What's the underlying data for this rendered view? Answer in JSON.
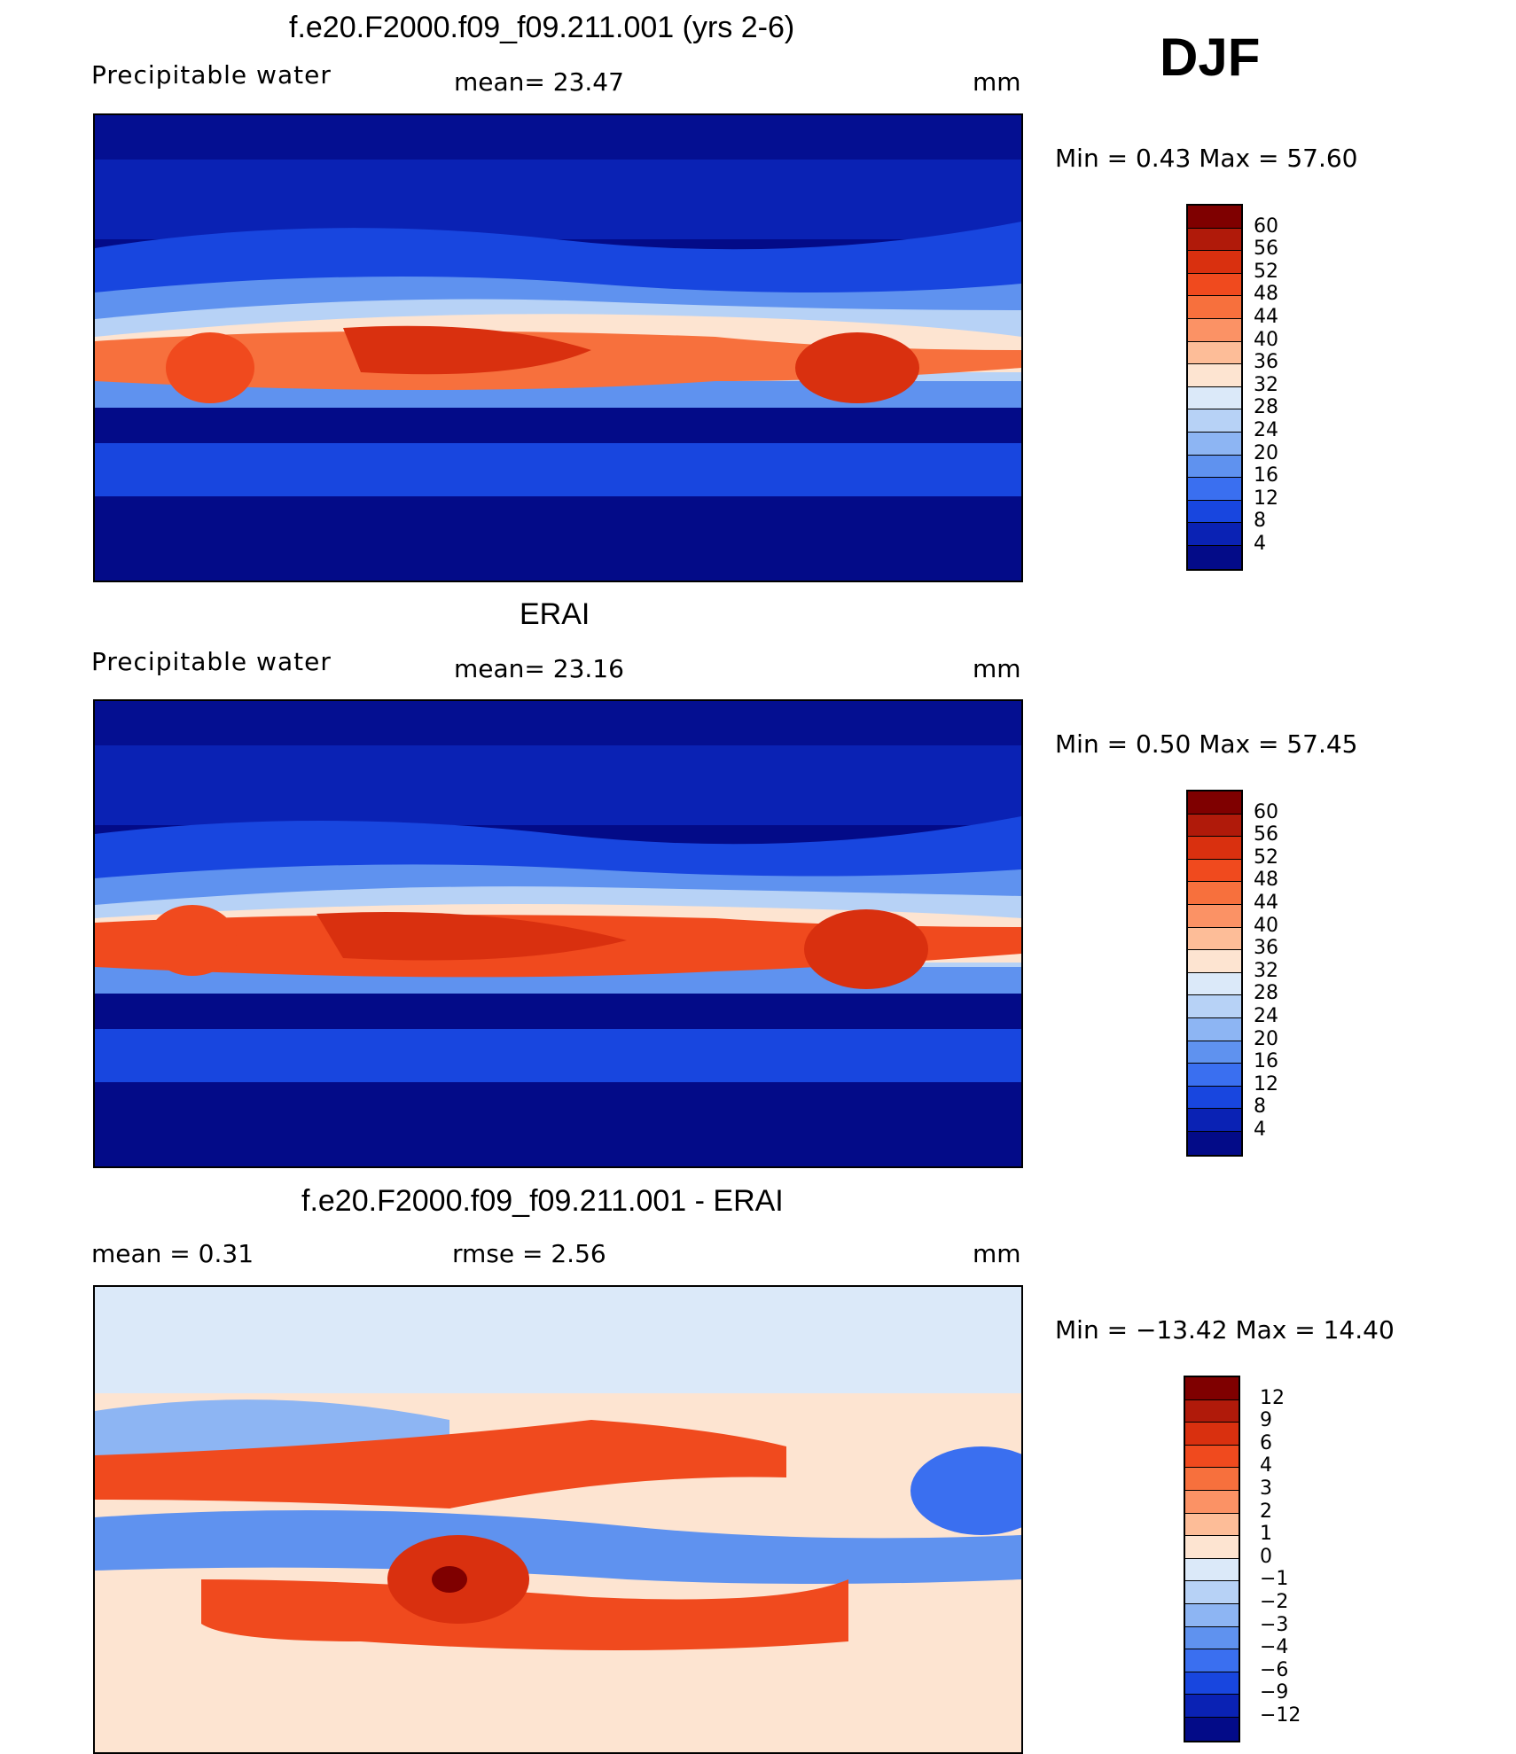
{
  "season": "DJF",
  "panels": [
    {
      "title": "f.e20.F2000.f09_f09.211.001 (yrs 2-6)",
      "left_label": "Precipitable  water",
      "center_label": "mean=   23.47",
      "units": "mm",
      "minmax": "Min  =     0.43  Max  =    57.60",
      "colorbar": {
        "labels": [
          "60",
          "56",
          "52",
          "48",
          "44",
          "40",
          "36",
          "32",
          "28",
          "24",
          "20",
          "16",
          "12",
          "8",
          "4"
        ],
        "colors": [
          "#7f0000",
          "#b01a0a",
          "#d9300f",
          "#f04a1e",
          "#f7703d",
          "#fb9265",
          "#fdbd98",
          "#fde4d1",
          "#dbe9f9",
          "#b7d2f6",
          "#8db5f3",
          "#5f92ef",
          "#3a6ff0",
          "#1846df",
          "#0a22b4",
          "#030b88"
        ]
      }
    },
    {
      "title": "ERAI",
      "left_label": "Precipitable  water",
      "center_label": "mean=   23.16",
      "units": "mm",
      "minmax": "Min  =     0.50  Max  =    57.45",
      "colorbar": {
        "labels": [
          "60",
          "56",
          "52",
          "48",
          "44",
          "40",
          "36",
          "32",
          "28",
          "24",
          "20",
          "16",
          "12",
          "8",
          "4"
        ],
        "colors": [
          "#7f0000",
          "#b01a0a",
          "#d9300f",
          "#f04a1e",
          "#f7703d",
          "#fb9265",
          "#fdbd98",
          "#fde4d1",
          "#dbe9f9",
          "#b7d2f6",
          "#8db5f3",
          "#5f92ef",
          "#3a6ff0",
          "#1846df",
          "#0a22b4",
          "#030b88"
        ]
      }
    },
    {
      "title": "f.e20.F2000.f09_f09.211.001 - ERAI",
      "left_label": "mean  =     0.31",
      "center_label": "rmse  =     2.56",
      "units": "mm",
      "minmax": "Min  = −13.42  Max  =    14.40",
      "colorbar": {
        "labels": [
          "12",
          "9",
          "6",
          "4",
          "3",
          "2",
          "1",
          "0",
          "−1",
          "−2",
          "−3",
          "−4",
          "−6",
          "−9",
          "−12"
        ],
        "colors": [
          "#7f0000",
          "#b01a0a",
          "#d9300f",
          "#f04a1e",
          "#f7703d",
          "#fb9265",
          "#fdbd98",
          "#fde4d1",
          "#dbe9f9",
          "#b7d2f6",
          "#8db5f3",
          "#5f92ef",
          "#3a6ff0",
          "#1846df",
          "#0a22b4",
          "#030b88"
        ]
      }
    }
  ]
}
